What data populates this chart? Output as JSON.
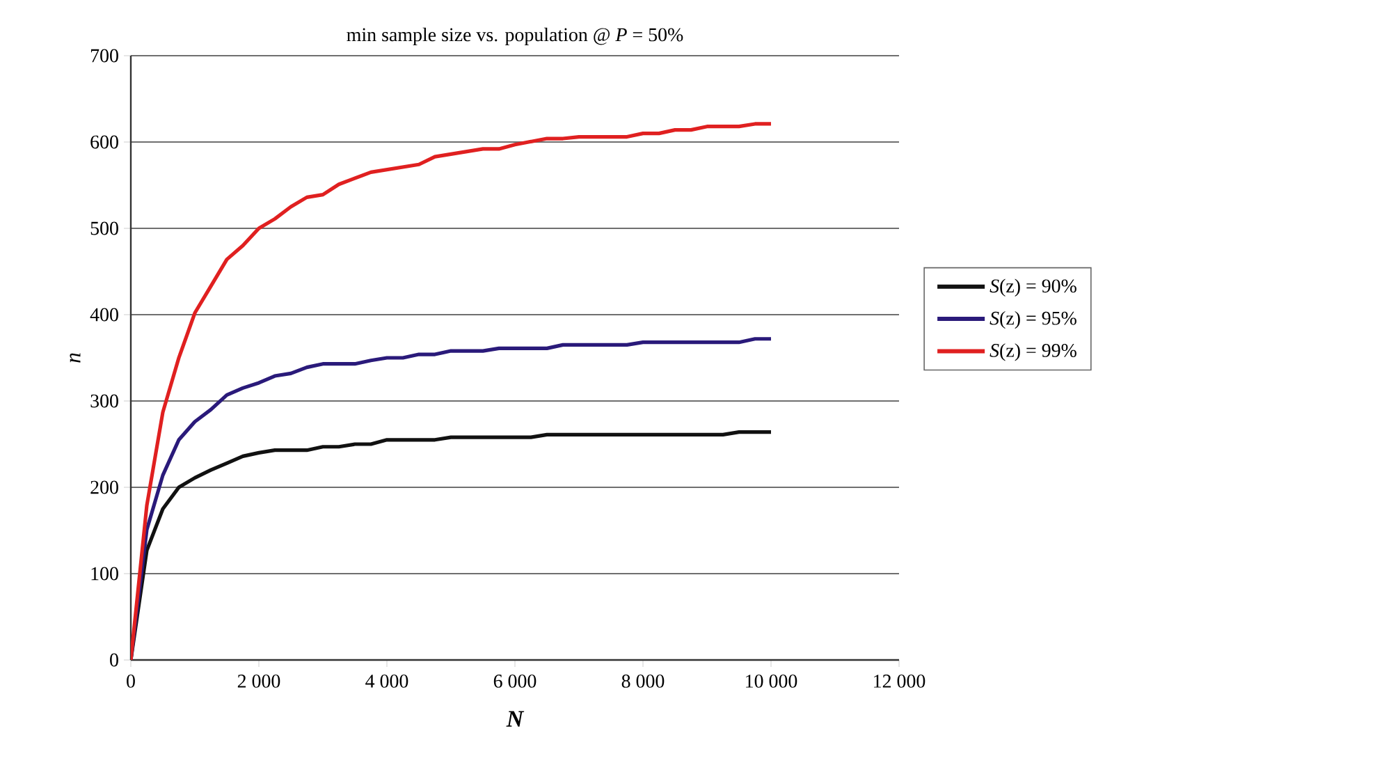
{
  "chart_data": {
    "type": "line",
    "title": "min sample size vs. population @ *P* = 50%",
    "xlabel": "N",
    "ylabel": "n",
    "xlim": [
      0,
      12000
    ],
    "ylim": [
      0,
      700
    ],
    "xticks": [
      0,
      {
        "value": 2000,
        "label": "2 000"
      },
      {
        "value": 4000,
        "label": "4 000"
      },
      {
        "value": 6000,
        "label": "6 000"
      },
      {
        "value": 8000,
        "label": "8 000"
      },
      {
        "value": 10000,
        "label": "10 000"
      },
      {
        "value": 12000,
        "label": "12 000"
      }
    ],
    "yticks": [
      0,
      100,
      200,
      300,
      400,
      500,
      600,
      700
    ],
    "grid": "y",
    "legend": "right",
    "marker": "none",
    "line_style": "solid",
    "series": [
      {
        "name": "*S*(z) = 90%",
        "color": "#111111",
        "x": [
          0,
          250,
          500,
          750,
          1000,
          1250,
          1500,
          1750,
          2000,
          2250,
          2750,
          3000,
          3250,
          3500,
          3750,
          4000,
          4750,
          5000,
          6250,
          6500,
          9250,
          9500,
          10000
        ],
        "values": [
          0,
          127,
          175,
          200,
          211,
          220,
          228,
          236,
          240,
          243,
          243,
          247,
          247,
          250,
          250,
          255,
          255,
          258,
          258,
          261,
          261,
          264,
          264
        ]
      },
      {
        "name": "*S*(z) = 95%",
        "color": "#2a1a7a",
        "x": [
          0,
          250,
          500,
          750,
          1000,
          1250,
          1500,
          1750,
          2000,
          2250,
          2500,
          2750,
          3000,
          3500,
          3750,
          4000,
          4250,
          4500,
          4750,
          5000,
          5500,
          5750,
          6500,
          6750,
          7750,
          8000,
          9500,
          9750,
          10000
        ],
        "values": [
          0,
          151,
          214,
          255,
          276,
          290,
          307,
          315,
          321,
          329,
          332,
          339,
          343,
          343,
          347,
          350,
          350,
          354,
          354,
          358,
          358,
          361,
          361,
          365,
          365,
          368,
          368,
          372,
          372
        ]
      },
      {
        "name": "*S*(z) = 99%",
        "color": "#e02020",
        "x": [
          0,
          250,
          500,
          750,
          1000,
          1250,
          1500,
          1750,
          2000,
          2250,
          2500,
          2750,
          3000,
          3250,
          3500,
          3750,
          4500,
          4750,
          5000,
          5250,
          5500,
          5750,
          6000,
          6500,
          6750,
          7000,
          7750,
          8000,
          8250,
          8500,
          8750,
          9000,
          9500,
          9750,
          10000
        ],
        "values": [
          0,
          179,
          287,
          350,
          402,
          433,
          464,
          480,
          500,
          511,
          525,
          536,
          539,
          551,
          558,
          565,
          574,
          583,
          586,
          589,
          592,
          592,
          597,
          604,
          604,
          606,
          606,
          610,
          610,
          614,
          614,
          618,
          618,
          621,
          621
        ]
      }
    ]
  }
}
